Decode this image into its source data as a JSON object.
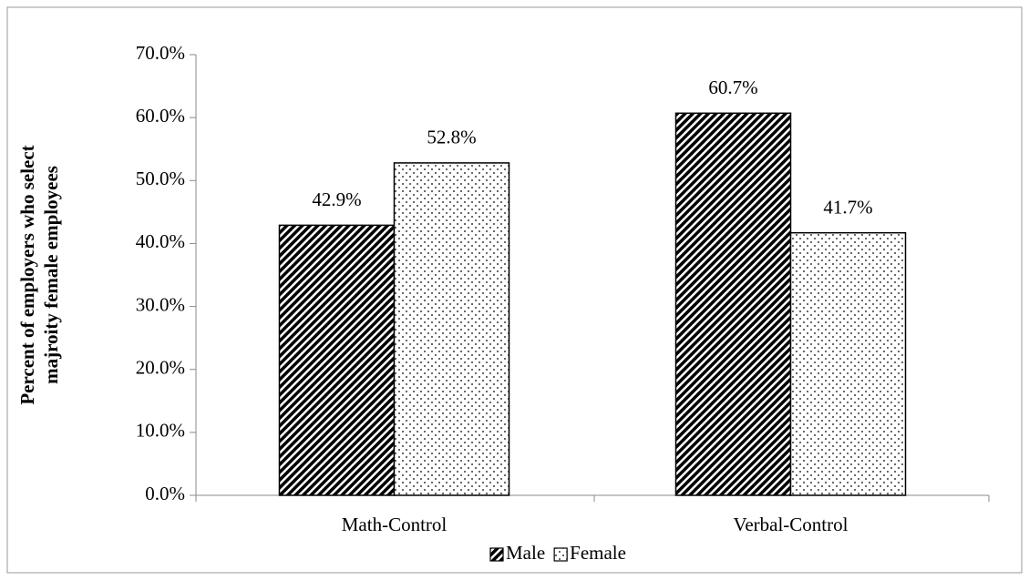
{
  "chart_data": {
    "type": "bar",
    "ylabel": [
      "Percent of employers who select",
      "majroity female employees"
    ],
    "categories": [
      "Math-Control",
      "Verbal-Control"
    ],
    "series": [
      {
        "name": "Male",
        "color": "#000000",
        "pattern": "diagonal",
        "values": [
          42.9,
          60.7
        ],
        "value_labels": [
          "42.9%",
          "60.7%"
        ]
      },
      {
        "name": "Female",
        "color": "#000000",
        "pattern": "dots",
        "values": [
          52.8,
          41.7
        ],
        "value_labels": [
          "52.8%",
          "41.7%"
        ]
      }
    ],
    "ylim": [
      0,
      70
    ],
    "yticks": [
      {
        "value": 0,
        "label": "0.0%"
      },
      {
        "value": 10,
        "label": "10.0%"
      },
      {
        "value": 20,
        "label": "20.0%"
      },
      {
        "value": 30,
        "label": "30.0%"
      },
      {
        "value": 40,
        "label": "40.0%"
      },
      {
        "value": 50,
        "label": "50.0%"
      },
      {
        "value": 60,
        "label": "60.0%"
      },
      {
        "value": 70,
        "label": "70.0%"
      }
    ],
    "legend": "bottom"
  }
}
